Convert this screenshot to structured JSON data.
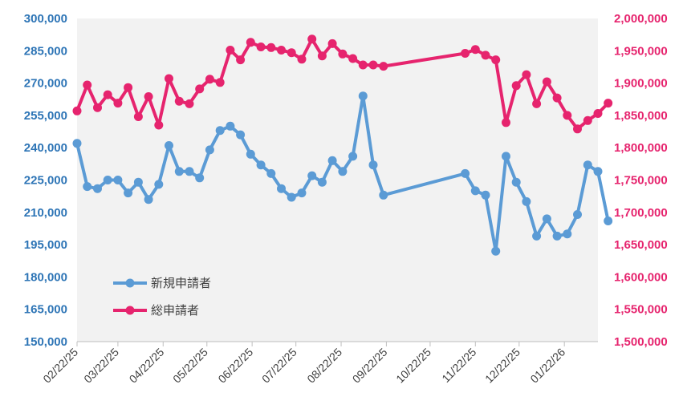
{
  "chart_data": {
    "type": "line",
    "title": "",
    "xlabel": "",
    "grid": false,
    "legend_position": "lower-left inside plot",
    "x_axis": {
      "tick_labels": [
        "02/22/25",
        "03/22/25",
        "04/22/25",
        "05/22/25",
        "06/22/25",
        "07/22/25",
        "08/22/25",
        "09/22/25",
        "10/22/25",
        "11/22/25",
        "12/22/25",
        "01/22/26"
      ],
      "tick_dates": [
        "2025-02-22",
        "2025-03-22",
        "2025-04-22",
        "2025-05-22",
        "2025-06-22",
        "2025-07-22",
        "2025-08-22",
        "2025-09-22",
        "2025-10-22",
        "2025-11-22",
        "2025-12-22",
        "2026-01-22"
      ],
      "range": [
        "2025-02-22",
        "2026-02-14"
      ]
    },
    "y_left": {
      "range": [
        150000,
        300000
      ],
      "ticks": [
        150000,
        165000,
        180000,
        195000,
        210000,
        225000,
        240000,
        255000,
        270000,
        285000,
        300000
      ],
      "tick_labels": [
        "150,000",
        "165,000",
        "180,000",
        "195,000",
        "210,000",
        "225,000",
        "240,000",
        "255,000",
        "270,000",
        "285,000",
        "300,000"
      ],
      "color": "#2E75B6"
    },
    "y_right": {
      "range": [
        1500000,
        2000000
      ],
      "ticks": [
        1500000,
        1550000,
        1600000,
        1650000,
        1700000,
        1750000,
        1800000,
        1850000,
        1900000,
        1950000,
        2000000
      ],
      "tick_labels": [
        "1,500,000",
        "1,550,000",
        "1,600,000",
        "1,650,000",
        "1,700,000",
        "1,750,000",
        "1,800,000",
        "1,850,000",
        "1,900,000",
        "1,950,000",
        "2,000,000"
      ],
      "color": "#E6246E"
    },
    "series": [
      {
        "name": "新規申請者",
        "axis": "left",
        "color": "#5B9BD5",
        "points": [
          [
            "2025-02-22",
            242000
          ],
          [
            "2025-03-01",
            222000
          ],
          [
            "2025-03-08",
            221000
          ],
          [
            "2025-03-15",
            225000
          ],
          [
            "2025-03-22",
            225000
          ],
          [
            "2025-03-29",
            219000
          ],
          [
            "2025-04-05",
            224000
          ],
          [
            "2025-04-12",
            216000
          ],
          [
            "2025-04-19",
            223000
          ],
          [
            "2025-04-26",
            241000
          ],
          [
            "2025-05-03",
            229000
          ],
          [
            "2025-05-10",
            229000
          ],
          [
            "2025-05-17",
            226000
          ],
          [
            "2025-05-24",
            239000
          ],
          [
            "2025-05-31",
            248000
          ],
          [
            "2025-06-07",
            250000
          ],
          [
            "2025-06-14",
            246000
          ],
          [
            "2025-06-21",
            237000
          ],
          [
            "2025-06-28",
            232000
          ],
          [
            "2025-07-05",
            228000
          ],
          [
            "2025-07-12",
            221000
          ],
          [
            "2025-07-19",
            217000
          ],
          [
            "2025-07-26",
            219000
          ],
          [
            "2025-08-02",
            227000
          ],
          [
            "2025-08-09",
            224000
          ],
          [
            "2025-08-16",
            234000
          ],
          [
            "2025-08-23",
            229000
          ],
          [
            "2025-08-30",
            236000
          ],
          [
            "2025-09-06",
            264000
          ],
          [
            "2025-09-13",
            232000
          ],
          [
            "2025-09-20",
            218000
          ],
          [
            "2025-11-15",
            228000
          ],
          [
            "2025-11-22",
            220000
          ],
          [
            "2025-11-29",
            218000
          ],
          [
            "2025-12-06",
            192000
          ],
          [
            "2025-12-13",
            236000
          ],
          [
            "2025-12-20",
            224000
          ],
          [
            "2025-12-27",
            215000
          ],
          [
            "2026-01-03",
            199000
          ],
          [
            "2026-01-10",
            207000
          ],
          [
            "2026-01-17",
            199000
          ],
          [
            "2026-01-24",
            200000
          ],
          [
            "2026-01-31",
            209000
          ],
          [
            "2026-02-07",
            232000
          ],
          [
            "2026-02-14",
            229000
          ],
          [
            "2026-02-21",
            206000
          ]
        ]
      },
      {
        "name": "総申請者",
        "axis": "right",
        "color": "#E6246E",
        "points": [
          [
            "2025-02-22",
            1857000
          ],
          [
            "2025-03-01",
            1897000
          ],
          [
            "2025-03-08",
            1862000
          ],
          [
            "2025-03-15",
            1882000
          ],
          [
            "2025-03-22",
            1869000
          ],
          [
            "2025-03-29",
            1893000
          ],
          [
            "2025-04-05",
            1848000
          ],
          [
            "2025-04-12",
            1879000
          ],
          [
            "2025-04-19",
            1835000
          ],
          [
            "2025-04-26",
            1907000
          ],
          [
            "2025-05-03",
            1872000
          ],
          [
            "2025-05-10",
            1868000
          ],
          [
            "2025-05-17",
            1891000
          ],
          [
            "2025-05-24",
            1906000
          ],
          [
            "2025-05-31",
            1901000
          ],
          [
            "2025-06-07",
            1951000
          ],
          [
            "2025-06-14",
            1936000
          ],
          [
            "2025-06-21",
            1963000
          ],
          [
            "2025-06-28",
            1956000
          ],
          [
            "2025-07-05",
            1955000
          ],
          [
            "2025-07-12",
            1951000
          ],
          [
            "2025-07-19",
            1947000
          ],
          [
            "2025-07-26",
            1937000
          ],
          [
            "2025-08-02",
            1968000
          ],
          [
            "2025-08-09",
            1942000
          ],
          [
            "2025-08-16",
            1961000
          ],
          [
            "2025-08-23",
            1945000
          ],
          [
            "2025-08-30",
            1938000
          ],
          [
            "2025-09-06",
            1928000
          ],
          [
            "2025-09-13",
            1928000
          ],
          [
            "2025-09-20",
            1926000
          ],
          [
            "2025-11-15",
            1946000
          ],
          [
            "2025-11-22",
            1952000
          ],
          [
            "2025-11-29",
            1943000
          ],
          [
            "2025-12-06",
            1936000
          ],
          [
            "2025-12-13",
            1839000
          ],
          [
            "2025-12-20",
            1896000
          ],
          [
            "2025-12-27",
            1913000
          ],
          [
            "2026-01-03",
            1868000
          ],
          [
            "2026-01-10",
            1902000
          ],
          [
            "2026-01-17",
            1877000
          ],
          [
            "2026-01-24",
            1850000
          ],
          [
            "2026-01-31",
            1829000
          ],
          [
            "2026-02-07",
            1842000
          ],
          [
            "2026-02-14",
            1853000
          ],
          [
            "2026-02-21",
            1869000
          ]
        ]
      }
    ]
  }
}
